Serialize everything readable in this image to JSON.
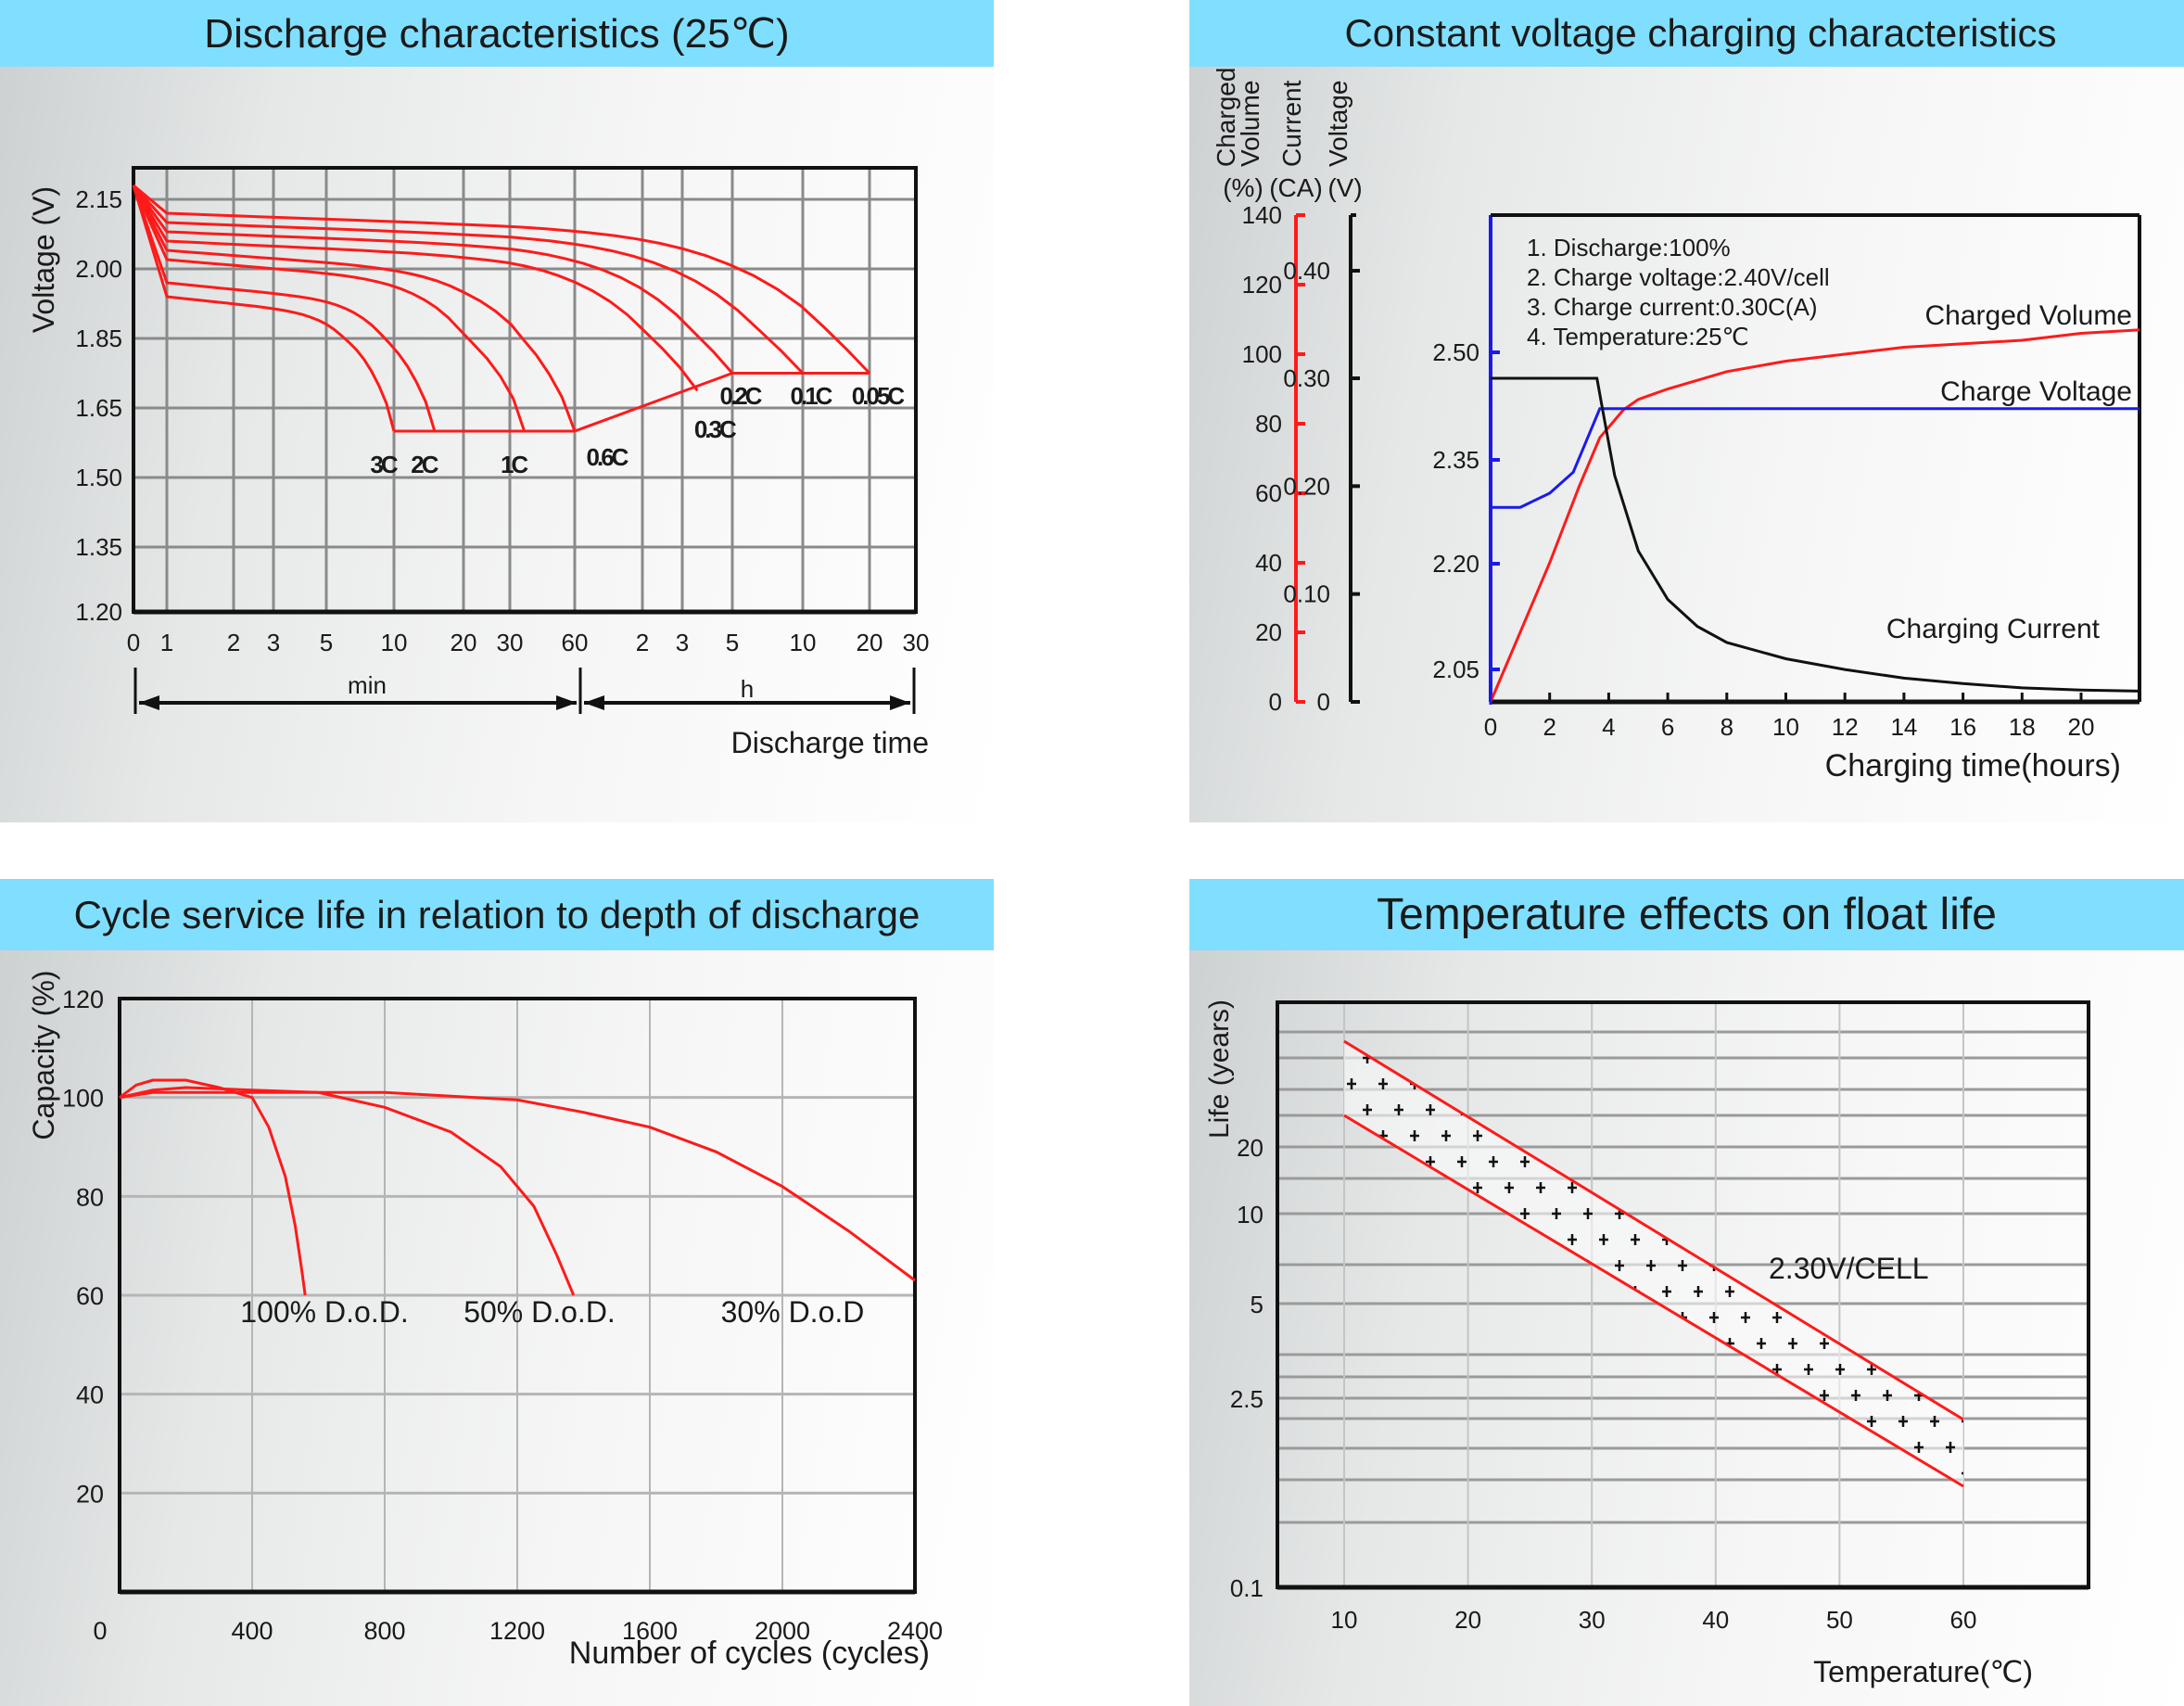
{
  "colors": {
    "header_bg": "#80dfff",
    "curve_red": "#ff1a1a",
    "curve_blue": "#1a1aee",
    "curve_black": "#111111",
    "grid": "#8a8a8a"
  },
  "chart_data": [
    {
      "id": "discharge",
      "type": "line",
      "title": "Discharge characteristics (25℃)",
      "ylabel": "Voltage (V)",
      "xlabel": "Discharge time",
      "y_ticks": [
        "2.15",
        "2.00",
        "1.85",
        "1.65",
        "1.50",
        "1.35",
        "1.20"
      ],
      "x_ticks": [
        "0",
        "1",
        "2",
        "3",
        "5",
        "10",
        "20",
        "30",
        "60",
        "2",
        "3",
        "5",
        "10",
        "20",
        "30"
      ],
      "x_unit_groups": [
        {
          "label": "min",
          "from": "0",
          "to": "60 min"
        },
        {
          "label": "h",
          "from": "1 h",
          "to": "30 h"
        }
      ],
      "grid": true,
      "series": [
        {
          "name": "3C",
          "end_time": "10 min",
          "end_voltage": 1.6,
          "initial_voltage": 1.94
        },
        {
          "name": "2C",
          "end_time": "15 min",
          "end_voltage": 1.6,
          "initial_voltage": 1.97
        },
        {
          "name": "1C",
          "end_time": "35 min",
          "end_voltage": 1.6,
          "initial_voltage": 2.02
        },
        {
          "name": "0.6C",
          "end_time": "60 min",
          "end_voltage": 1.6,
          "initial_voltage": 2.04
        },
        {
          "name": "0.3C",
          "end_time": "3.5 h",
          "end_voltage": 1.7,
          "initial_voltage": 2.06
        },
        {
          "name": "0.2C",
          "end_time": "5 h",
          "end_voltage": 1.75,
          "initial_voltage": 2.08
        },
        {
          "name": "0.1C",
          "end_time": "10 h",
          "end_voltage": 1.75,
          "initial_voltage": 2.1
        },
        {
          "name": "0.05C",
          "end_time": "20 h",
          "end_voltage": 1.75,
          "initial_voltage": 2.12
        }
      ]
    },
    {
      "id": "charging",
      "type": "line",
      "title": "Constant voltage charging characteristics",
      "xlabel": "Charging time(hours)",
      "x_ticks": [
        "0",
        "2",
        "4",
        "6",
        "8",
        "10",
        "12",
        "14",
        "16",
        "18",
        "20"
      ],
      "xlim": [
        0,
        22
      ],
      "axes": [
        {
          "id": "volume",
          "label_line1": "Charged",
          "label_line2": "Volume",
          "unit": "(%)",
          "ticks": [
            "140",
            "120",
            "100",
            "80",
            "60",
            "40",
            "20",
            "0"
          ],
          "range": [
            0,
            140
          ],
          "color": "#ff1a1a"
        },
        {
          "id": "current",
          "label_line1": "Current",
          "unit": "(CA)",
          "ticks": [
            "0.40",
            "0.30",
            "0.20",
            "0.10",
            "0"
          ],
          "range": [
            0,
            0.45
          ],
          "color": "#111111"
        },
        {
          "id": "voltage",
          "label_line1": "Voltage",
          "unit": "(V)",
          "ticks": [
            "2.50",
            "2.35",
            "2.20",
            "2.05"
          ],
          "color": "#1a1aee"
        }
      ],
      "notes": [
        "1. Discharge:100%",
        "2. Charge voltage:2.40V/cell",
        "3. Charge current:0.30C(A)",
        "4. Temperature:25℃"
      ],
      "series": [
        {
          "name": "Charged Volume",
          "axis": "volume",
          "x": [
            0,
            1,
            2,
            3,
            3.7,
            4.5,
            5,
            6,
            8,
            10,
            12,
            14,
            16,
            18,
            20,
            22
          ],
          "y": [
            0,
            20,
            40,
            62,
            76,
            84,
            87,
            90,
            95,
            98,
            100,
            102,
            103,
            104,
            106,
            107
          ]
        },
        {
          "name": "Charge Voltage",
          "axis": "voltage",
          "x": [
            0,
            0,
            1,
            2,
            2.8,
            3.3,
            3.7,
            4,
            22
          ],
          "y": [
            2.0,
            2.28,
            2.28,
            2.3,
            2.33,
            2.38,
            2.42,
            2.42,
            2.42
          ]
        },
        {
          "name": "Charging Current",
          "axis": "current",
          "x": [
            0,
            3.6,
            3.8,
            4.2,
            5,
            6,
            7,
            8,
            10,
            12,
            14,
            16,
            18,
            20,
            22
          ],
          "y": [
            0.3,
            0.3,
            0.27,
            0.21,
            0.14,
            0.095,
            0.07,
            0.055,
            0.04,
            0.03,
            0.022,
            0.017,
            0.013,
            0.011,
            0.01
          ]
        }
      ]
    },
    {
      "id": "cycle_life",
      "type": "line",
      "title": "Cycle service life in relation to depth of discharge",
      "ylabel": "Capacity  (%)",
      "xlabel": "Number of cycles (cycles)",
      "xlim": [
        0,
        2400
      ],
      "ylim": [
        0,
        120
      ],
      "x_ticks": [
        "0",
        "400",
        "800",
        "1200",
        "1600",
        "2000",
        "2400"
      ],
      "y_ticks": [
        "120",
        "100",
        "80",
        "60",
        "40",
        "20"
      ],
      "grid": true,
      "series": [
        {
          "name": "100% D.o.D.",
          "x": [
            0,
            50,
            100,
            200,
            300,
            400,
            450,
            500,
            530,
            550,
            560
          ],
          "y": [
            100,
            102.5,
            103.5,
            103.5,
            102,
            100,
            94,
            84,
            74,
            65,
            60
          ]
        },
        {
          "name": "50% D.o.D.",
          "x": [
            0,
            100,
            200,
            400,
            600,
            800,
            1000,
            1150,
            1250,
            1320,
            1370
          ],
          "y": [
            100,
            101.5,
            102,
            101.5,
            101,
            98,
            93,
            86,
            78,
            68,
            60
          ]
        },
        {
          "name": "30% D.o.D",
          "x": [
            0,
            100,
            400,
            800,
            1200,
            1400,
            1600,
            1800,
            2000,
            2200,
            2400
          ],
          "y": [
            100,
            101,
            101,
            101,
            99.5,
            97,
            94,
            89,
            82,
            73,
            63
          ]
        }
      ]
    },
    {
      "id": "float_life",
      "type": "area",
      "title": "Temperature effects on float life",
      "ylabel": "Life (years)",
      "xlabel": "Temperature(℃)",
      "x_ticks": [
        "10",
        "20",
        "30",
        "40",
        "50",
        "60"
      ],
      "y_ticks": [
        "20",
        "10",
        "5",
        "2.5",
        "0.1"
      ],
      "y_scale": "log",
      "annotation": "2.30V/CELL",
      "band": {
        "x": [
          10,
          60
        ],
        "upper": [
          30,
          1.9
        ],
        "lower": [
          17,
          0.9
        ]
      }
    }
  ]
}
